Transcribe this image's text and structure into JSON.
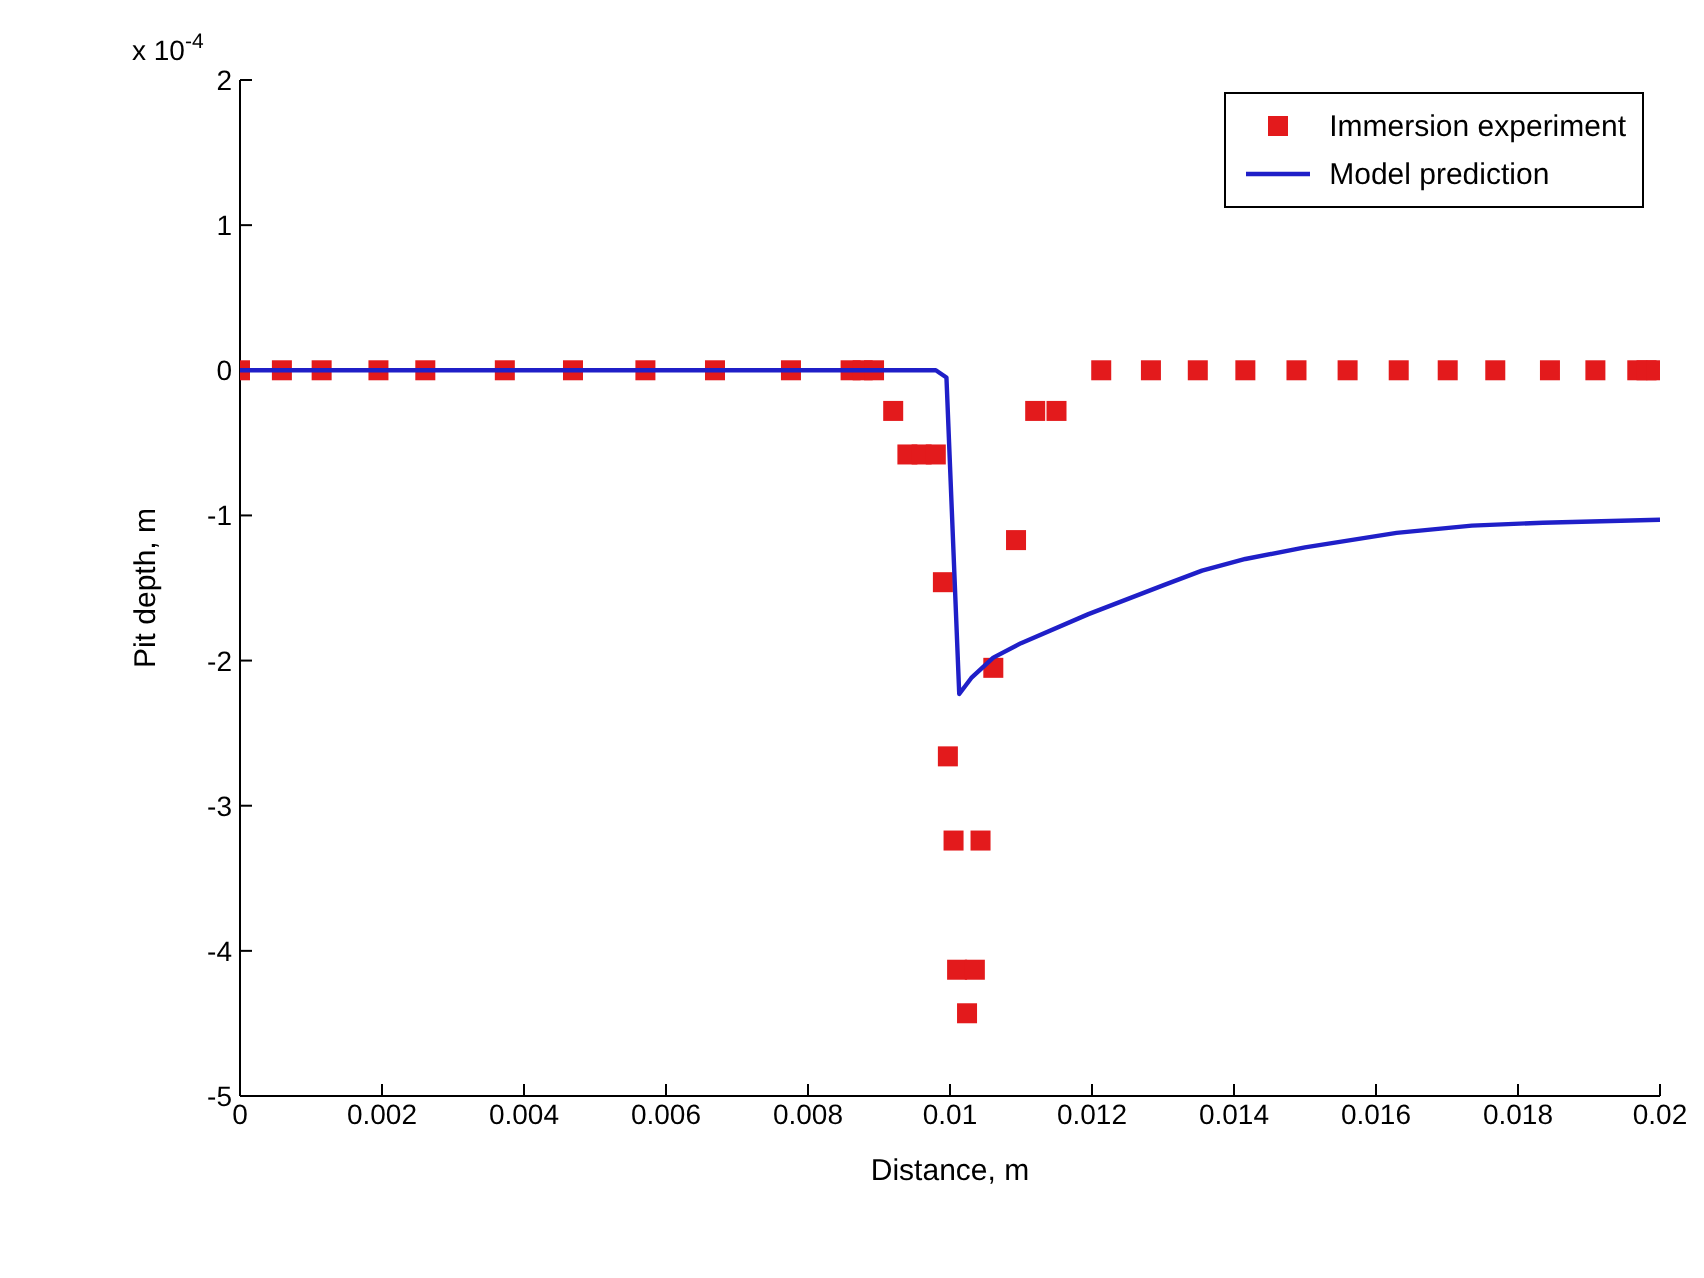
{
  "chart_data": {
    "type": "scatter",
    "xlabel": "Distance, m",
    "ylabel": "Pit depth, m",
    "annotations": [
      "x 10$^{-4}$"
    ],
    "xlim": [
      0,
      0.02
    ],
    "xticks": [
      0,
      0.002,
      0.004,
      0.006,
      0.008,
      0.01,
      0.012,
      0.014,
      0.016,
      0.018,
      0.02
    ],
    "ylim": [
      -5,
      2
    ],
    "yticks": [
      -5,
      -4,
      -3,
      -2,
      -1,
      0,
      1,
      2
    ],
    "grid": false,
    "legend": "top right",
    "series": [
      {
        "name": "Immersion experiment",
        "marker": "square",
        "color": "#e31a1c",
        "x": [
          0,
          0.00059,
          0.00115,
          0.00195,
          0.00261,
          0.00373,
          0.00469,
          0.00571,
          0.00669,
          0.00776,
          0.0086,
          0.00877,
          0.00893,
          0.0092,
          0.0094,
          0.0096,
          0.0098,
          0.0099,
          0.00997,
          0.01005,
          0.01043,
          0.0101,
          0.01035,
          0.01024,
          0.01061,
          0.01093,
          0.0112,
          0.0115,
          0.01213,
          0.01283,
          0.01349,
          0.01416,
          0.01488,
          0.0156,
          0.01632,
          0.01701,
          0.01768,
          0.01845,
          0.01909,
          0.01968,
          0.01981,
          0.01995
        ],
        "values": [
          0,
          0,
          0,
          0,
          0,
          0,
          0,
          0,
          0,
          0,
          0,
          0,
          0,
          -0.28,
          -0.58,
          -0.58,
          -0.58,
          -1.46,
          -2.66,
          -3.24,
          -3.24,
          -4.13,
          -4.13,
          -4.43,
          -2.05,
          -1.17,
          -0.28,
          -0.28,
          0,
          0,
          0,
          0,
          0,
          0,
          0,
          0,
          0,
          0,
          0,
          0,
          0,
          0
        ]
      },
      {
        "name": "Model prediction",
        "type": "line",
        "marker": "none",
        "line_style": "solid",
        "color": "#1f1fc8",
        "x": [
          0,
          0.0098,
          0.00995,
          0.01013,
          0.0103,
          0.01061,
          0.011,
          0.01195,
          0.01301,
          0.01355,
          0.01416,
          0.015,
          0.01629,
          0.01735,
          0.01835,
          0.02
        ],
        "values": [
          0,
          0,
          -0.05,
          -2.23,
          -2.12,
          -1.98,
          -1.88,
          -1.68,
          -1.48,
          -1.38,
          -1.3,
          -1.22,
          -1.12,
          -1.07,
          -1.05,
          -1.03
        ]
      }
    ]
  }
}
